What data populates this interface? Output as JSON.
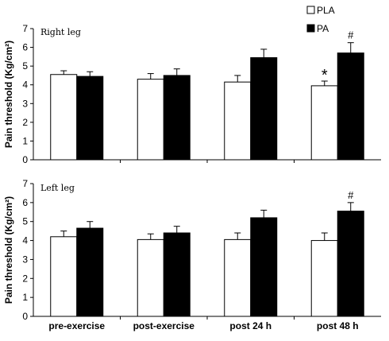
{
  "legend": [
    {
      "label": "PLA",
      "color": "#ffffff"
    },
    {
      "label": "PA",
      "color": "#000000"
    }
  ],
  "chart_data": [
    {
      "type": "bar",
      "title": "Right leg",
      "ylabel": "Pain threshold (Kg/cm²)",
      "ylim": [
        0,
        7
      ],
      "yticks": [
        "0",
        "1",
        "2",
        "3",
        "4",
        "5",
        "6",
        "7"
      ],
      "categories": [
        "pre-exercise",
        "post-exercise",
        "post  24 h",
        "post  48 h"
      ],
      "series": [
        {
          "name": "PLA",
          "color": "#ffffff",
          "values": [
            4.55,
            4.3,
            4.15,
            3.95
          ],
          "errors": [
            0.2,
            0.3,
            0.35,
            0.25
          ],
          "markers": [
            "",
            "",
            "",
            "*"
          ]
        },
        {
          "name": "PA",
          "color": "#000000",
          "values": [
            4.45,
            4.5,
            5.45,
            5.7
          ],
          "errors": [
            0.25,
            0.35,
            0.45,
            0.55
          ],
          "markers": [
            "",
            "",
            "",
            "#"
          ]
        }
      ]
    },
    {
      "type": "bar",
      "title": "Left leg",
      "ylabel": "Pain threshold (Kg/cm²)",
      "ylim": [
        0,
        7
      ],
      "yticks": [
        "0",
        "1",
        "2",
        "3",
        "4",
        "5",
        "6",
        "7"
      ],
      "categories": [
        "pre-exercise",
        "post-exercise",
        "post  24 h",
        "post  48 h"
      ],
      "series": [
        {
          "name": "PLA",
          "color": "#ffffff",
          "values": [
            4.2,
            4.05,
            4.05,
            4.0
          ],
          "errors": [
            0.3,
            0.3,
            0.35,
            0.4
          ],
          "markers": [
            "",
            "",
            "",
            ""
          ]
        },
        {
          "name": "PA",
          "color": "#000000",
          "values": [
            4.65,
            4.4,
            5.2,
            5.55
          ],
          "errors": [
            0.35,
            0.35,
            0.4,
            0.45
          ],
          "markers": [
            "",
            "",
            "",
            "#"
          ]
        }
      ]
    }
  ]
}
